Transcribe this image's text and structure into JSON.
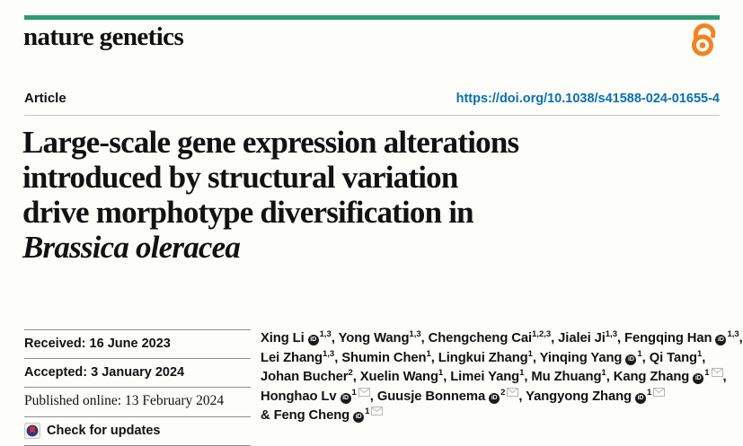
{
  "journal": {
    "name": "nature genetics"
  },
  "colors": {
    "brand_green": "#2e9b72",
    "link_blue": "#0a70b8",
    "oa_orange": "#f58220",
    "crossmark_blue": "#27348b",
    "crossmark_red": "#e0301e"
  },
  "header": {
    "article_kind": "Article",
    "doi": "https://doi.org/10.1038/s41588-024-01655-4"
  },
  "title": {
    "lines": [
      "Large-scale gene expression alterations",
      "introduced by structural variation",
      "drive morphotype diversification in"
    ],
    "italic_line": "Brassica oleracea"
  },
  "dates": {
    "received": "Received: 16 June 2023",
    "accepted": "Accepted: 3 January 2024",
    "published": "Published online: 13 February 2024"
  },
  "check_for_updates": {
    "label": "Check for updates"
  },
  "icons": {
    "open_access": "open-access-lock",
    "crossmark": "crossmark-badge",
    "orcid": "orcid-id-badge",
    "mail": "envelope",
    "orcid_glyph": "iD"
  },
  "authors": {
    "lines": [
      [
        {
          "t": "Xing Li"
        },
        {
          "i": "orcid"
        },
        {
          "s": "1,3"
        },
        {
          "t": ", Yong Wang"
        },
        {
          "s": "1,3"
        },
        {
          "t": ", Chengcheng Cai"
        },
        {
          "s": "1,2,3"
        },
        {
          "t": ", Jialei Ji"
        },
        {
          "s": "1,3"
        },
        {
          "t": ", Fengqing Han"
        },
        {
          "i": "orcid"
        },
        {
          "s": "1,3"
        },
        {
          "t": ","
        }
      ],
      [
        {
          "t": "Lei Zhang"
        },
        {
          "s": "1,3"
        },
        {
          "t": ", Shumin Chen"
        },
        {
          "s": "1"
        },
        {
          "t": ", Lingkui Zhang"
        },
        {
          "s": "1"
        },
        {
          "t": ", Yinqing Yang"
        },
        {
          "i": "orcid"
        },
        {
          "s": "1"
        },
        {
          "t": ", Qi Tang"
        },
        {
          "s": "1"
        },
        {
          "t": ","
        }
      ],
      [
        {
          "t": "Johan Bucher"
        },
        {
          "s": "2"
        },
        {
          "t": ", Xuelin Wang"
        },
        {
          "s": "1"
        },
        {
          "t": ", Limei Yang"
        },
        {
          "s": "1"
        },
        {
          "t": ", Mu Zhuang"
        },
        {
          "s": "1"
        },
        {
          "t": ", Kang Zhang"
        },
        {
          "i": "orcid"
        },
        {
          "s": "1"
        },
        {
          "i": "mail"
        },
        {
          "t": ","
        }
      ],
      [
        {
          "t": "Honghao Lv"
        },
        {
          "i": "orcid"
        },
        {
          "s": "1"
        },
        {
          "i": "mail"
        },
        {
          "t": ", Guusje Bonnema"
        },
        {
          "i": "orcid"
        },
        {
          "s": "2"
        },
        {
          "i": "mail"
        },
        {
          "t": ", Yangyong Zhang"
        },
        {
          "i": "orcid"
        },
        {
          "s": "1"
        },
        {
          "i": "mail"
        }
      ],
      [
        {
          "t": "& Feng Cheng"
        },
        {
          "i": "orcid"
        },
        {
          "s": "1"
        },
        {
          "i": "mail"
        }
      ]
    ]
  }
}
